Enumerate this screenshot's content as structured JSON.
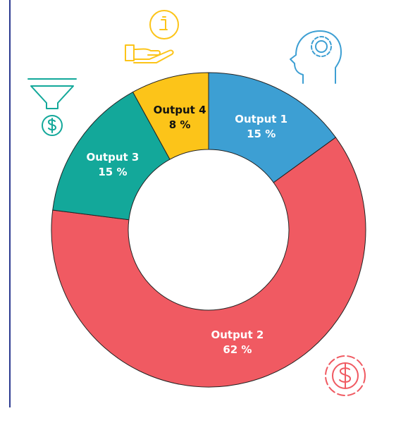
{
  "chart_data": {
    "type": "donut",
    "categories": [
      "Output 1",
      "Output 2",
      "Output 3",
      "Output 4"
    ],
    "values": [
      15,
      62,
      15,
      8
    ],
    "value_labels": [
      "15 %",
      "62 %",
      "15 %",
      "8 %"
    ],
    "colors": [
      "#3d9fd3",
      "#f05a62",
      "#13a89a",
      "#fcc419"
    ]
  }
}
